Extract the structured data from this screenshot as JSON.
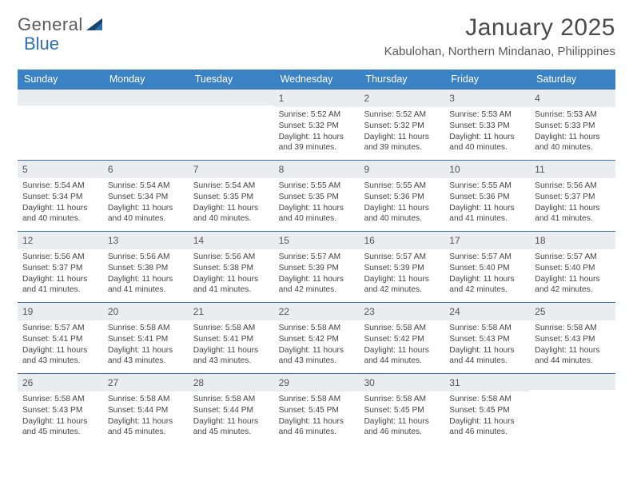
{
  "brand": {
    "line1": "General",
    "line2": "Blue",
    "accent": "#2f6fab"
  },
  "header": {
    "title": "January 2025",
    "location": "Kabulohan, Northern Mindanao, Philippines"
  },
  "colors": {
    "header_bg": "#3b82c4",
    "header_fg": "#ffffff",
    "daynum_bg": "#e9edef",
    "week_border": "#3b6fa0",
    "text": "#444444"
  },
  "weekdays": [
    "Sunday",
    "Monday",
    "Tuesday",
    "Wednesday",
    "Thursday",
    "Friday",
    "Saturday"
  ],
  "weeks": [
    [
      null,
      null,
      null,
      {
        "n": "1",
        "sr": "5:52 AM",
        "ss": "5:32 PM",
        "dl": "11 hours and 39 minutes."
      },
      {
        "n": "2",
        "sr": "5:52 AM",
        "ss": "5:32 PM",
        "dl": "11 hours and 39 minutes."
      },
      {
        "n": "3",
        "sr": "5:53 AM",
        "ss": "5:33 PM",
        "dl": "11 hours and 40 minutes."
      },
      {
        "n": "4",
        "sr": "5:53 AM",
        "ss": "5:33 PM",
        "dl": "11 hours and 40 minutes."
      }
    ],
    [
      {
        "n": "5",
        "sr": "5:54 AM",
        "ss": "5:34 PM",
        "dl": "11 hours and 40 minutes."
      },
      {
        "n": "6",
        "sr": "5:54 AM",
        "ss": "5:34 PM",
        "dl": "11 hours and 40 minutes."
      },
      {
        "n": "7",
        "sr": "5:54 AM",
        "ss": "5:35 PM",
        "dl": "11 hours and 40 minutes."
      },
      {
        "n": "8",
        "sr": "5:55 AM",
        "ss": "5:35 PM",
        "dl": "11 hours and 40 minutes."
      },
      {
        "n": "9",
        "sr": "5:55 AM",
        "ss": "5:36 PM",
        "dl": "11 hours and 40 minutes."
      },
      {
        "n": "10",
        "sr": "5:55 AM",
        "ss": "5:36 PM",
        "dl": "11 hours and 41 minutes."
      },
      {
        "n": "11",
        "sr": "5:56 AM",
        "ss": "5:37 PM",
        "dl": "11 hours and 41 minutes."
      }
    ],
    [
      {
        "n": "12",
        "sr": "5:56 AM",
        "ss": "5:37 PM",
        "dl": "11 hours and 41 minutes."
      },
      {
        "n": "13",
        "sr": "5:56 AM",
        "ss": "5:38 PM",
        "dl": "11 hours and 41 minutes."
      },
      {
        "n": "14",
        "sr": "5:56 AM",
        "ss": "5:38 PM",
        "dl": "11 hours and 41 minutes."
      },
      {
        "n": "15",
        "sr": "5:57 AM",
        "ss": "5:39 PM",
        "dl": "11 hours and 42 minutes."
      },
      {
        "n": "16",
        "sr": "5:57 AM",
        "ss": "5:39 PM",
        "dl": "11 hours and 42 minutes."
      },
      {
        "n": "17",
        "sr": "5:57 AM",
        "ss": "5:40 PM",
        "dl": "11 hours and 42 minutes."
      },
      {
        "n": "18",
        "sr": "5:57 AM",
        "ss": "5:40 PM",
        "dl": "11 hours and 42 minutes."
      }
    ],
    [
      {
        "n": "19",
        "sr": "5:57 AM",
        "ss": "5:41 PM",
        "dl": "11 hours and 43 minutes."
      },
      {
        "n": "20",
        "sr": "5:58 AM",
        "ss": "5:41 PM",
        "dl": "11 hours and 43 minutes."
      },
      {
        "n": "21",
        "sr": "5:58 AM",
        "ss": "5:41 PM",
        "dl": "11 hours and 43 minutes."
      },
      {
        "n": "22",
        "sr": "5:58 AM",
        "ss": "5:42 PM",
        "dl": "11 hours and 43 minutes."
      },
      {
        "n": "23",
        "sr": "5:58 AM",
        "ss": "5:42 PM",
        "dl": "11 hours and 44 minutes."
      },
      {
        "n": "24",
        "sr": "5:58 AM",
        "ss": "5:43 PM",
        "dl": "11 hours and 44 minutes."
      },
      {
        "n": "25",
        "sr": "5:58 AM",
        "ss": "5:43 PM",
        "dl": "11 hours and 44 minutes."
      }
    ],
    [
      {
        "n": "26",
        "sr": "5:58 AM",
        "ss": "5:43 PM",
        "dl": "11 hours and 45 minutes."
      },
      {
        "n": "27",
        "sr": "5:58 AM",
        "ss": "5:44 PM",
        "dl": "11 hours and 45 minutes."
      },
      {
        "n": "28",
        "sr": "5:58 AM",
        "ss": "5:44 PM",
        "dl": "11 hours and 45 minutes."
      },
      {
        "n": "29",
        "sr": "5:58 AM",
        "ss": "5:45 PM",
        "dl": "11 hours and 46 minutes."
      },
      {
        "n": "30",
        "sr": "5:58 AM",
        "ss": "5:45 PM",
        "dl": "11 hours and 46 minutes."
      },
      {
        "n": "31",
        "sr": "5:58 AM",
        "ss": "5:45 PM",
        "dl": "11 hours and 46 minutes."
      },
      null
    ]
  ],
  "labels": {
    "sunrise": "Sunrise:",
    "sunset": "Sunset:",
    "daylight": "Daylight:"
  }
}
